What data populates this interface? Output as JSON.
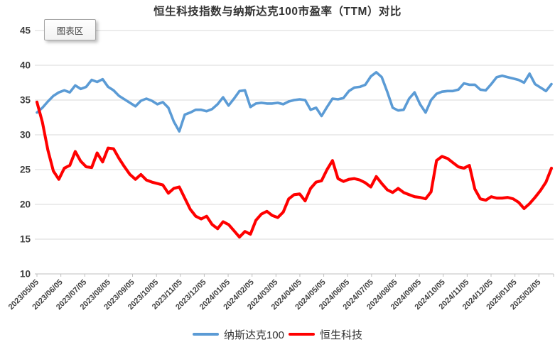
{
  "title": "恒生科技指数与纳斯达克100市盈率（TTM）对比",
  "tooltip": {
    "label": "图表区"
  },
  "colors": {
    "nasdaq_blue": "#5B9BD5",
    "hstech_red": "#FF0000",
    "gridline": "#D9D9D9",
    "axis_line": "#BFBFBF",
    "label_text": "#404040"
  },
  "y_axis": {
    "min": 10,
    "max": 45,
    "step": 5,
    "tick_labels": [
      "10",
      "15",
      "20",
      "25",
      "30",
      "35",
      "40",
      "45"
    ]
  },
  "chart_data": {
    "type": "line",
    "title": "恒生科技指数与纳斯达克100市盈率（TTM）对比",
    "xlabel": "",
    "ylabel": "",
    "ylim": [
      10,
      45
    ],
    "grid": true,
    "legend_position": "bottom",
    "x_labels": [
      "2023/05/05",
      "2023/06/05",
      "2023/07/05",
      "2023/08/05",
      "2023/09/05",
      "2023/10/05",
      "2023/11/05",
      "2023/12/05",
      "2024/01/05",
      "2024/02/05",
      "2024/03/05",
      "2024/04/05",
      "2024/05/05",
      "2024/06/05",
      "2024/07/05",
      "2024/08/05",
      "2024/09/05",
      "2024/10/05",
      "2024/11/05",
      "2024/12/05",
      "2025/01/05",
      "2025/02/05"
    ],
    "x_frequency": "weekly",
    "series": [
      {
        "id": "nasdaq100",
        "name": "纳斯达克100",
        "color": "#5B9BD5",
        "values": [
          33.2,
          33.9,
          34.8,
          35.6,
          36.1,
          36.4,
          36.1,
          37.1,
          36.6,
          36.9,
          37.9,
          37.6,
          38.0,
          36.9,
          36.4,
          35.6,
          35.1,
          34.6,
          34.1,
          34.9,
          35.2,
          34.9,
          34.4,
          34.7,
          33.9,
          31.9,
          30.5,
          32.9,
          33.2,
          33.6,
          33.6,
          33.4,
          33.7,
          34.4,
          35.4,
          34.2,
          35.2,
          36.3,
          36.4,
          34.0,
          34.5,
          34.6,
          34.5,
          34.5,
          34.6,
          34.4,
          34.8,
          35.0,
          35.1,
          35.0,
          33.6,
          33.9,
          32.7,
          34.0,
          35.2,
          35.1,
          35.3,
          36.3,
          36.8,
          36.9,
          37.2,
          38.4,
          39.0,
          38.3,
          36.2,
          33.9,
          33.5,
          33.6,
          35.2,
          36.1,
          34.4,
          33.2,
          35.0,
          35.9,
          36.2,
          36.3,
          36.3,
          36.5,
          37.4,
          37.2,
          37.2,
          36.5,
          36.4,
          37.3,
          38.3,
          38.5,
          38.3,
          38.1,
          37.9,
          37.5,
          38.8,
          37.3,
          36.8,
          36.3,
          37.3
        ]
      },
      {
        "id": "hstech",
        "name": "恒生科技",
        "color": "#FF0000",
        "values": [
          34.7,
          31.8,
          27.8,
          24.8,
          23.6,
          25.2,
          25.6,
          27.6,
          26.2,
          25.4,
          25.3,
          27.4,
          26.1,
          28.1,
          28.0,
          26.6,
          25.4,
          24.3,
          23.6,
          24.3,
          23.5,
          23.2,
          23.0,
          22.8,
          21.6,
          22.3,
          22.5,
          20.9,
          19.3,
          18.3,
          17.9,
          18.3,
          17.1,
          16.5,
          17.5,
          17.1,
          16.2,
          15.3,
          16.1,
          15.7,
          17.7,
          18.6,
          19.0,
          18.4,
          18.1,
          18.9,
          20.8,
          21.4,
          21.5,
          20.5,
          22.3,
          23.2,
          23.4,
          25.0,
          26.3,
          23.7,
          23.3,
          23.6,
          23.7,
          23.5,
          23.1,
          22.5,
          24.0,
          23.0,
          22.1,
          21.7,
          22.3,
          21.7,
          21.4,
          21.1,
          21.0,
          20.8,
          21.8,
          26.3,
          26.9,
          26.6,
          26.0,
          25.4,
          25.2,
          25.6,
          22.2,
          20.8,
          20.6,
          21.1,
          20.9,
          20.9,
          21.0,
          20.8,
          20.3,
          19.4,
          20.1,
          21.0,
          22.0,
          23.2,
          25.2
        ]
      }
    ]
  }
}
